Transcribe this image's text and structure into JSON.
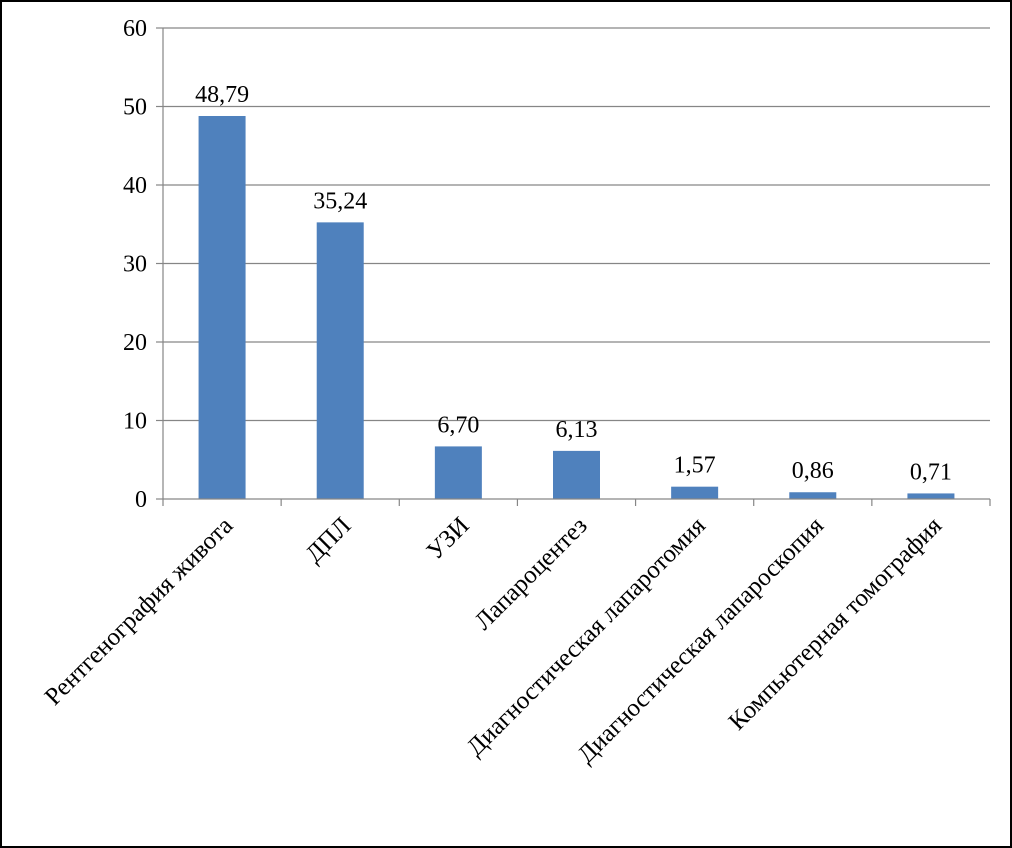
{
  "chart_data": {
    "type": "bar",
    "categories": [
      "Рентгенография живота",
      "ДПЛ",
      "УЗИ",
      "Лапароцентез",
      "Диагностическая лапаротомия",
      "Диагностическая лапароскопия",
      "Компьютерная томография"
    ],
    "values": [
      48.79,
      35.24,
      6.7,
      6.13,
      1.57,
      0.86,
      0.71
    ],
    "data_labels": [
      "48,79",
      "35,24",
      "6,70",
      "6,13",
      "1,57",
      "0,86",
      "0,71"
    ],
    "y_ticks": [
      "0",
      "10",
      "20",
      "30",
      "40",
      "50",
      "60"
    ],
    "ylim": [
      0,
      60
    ],
    "grid": true,
    "legend": "none",
    "bar_color": "#4f81bd",
    "grid_color": "#868686"
  }
}
